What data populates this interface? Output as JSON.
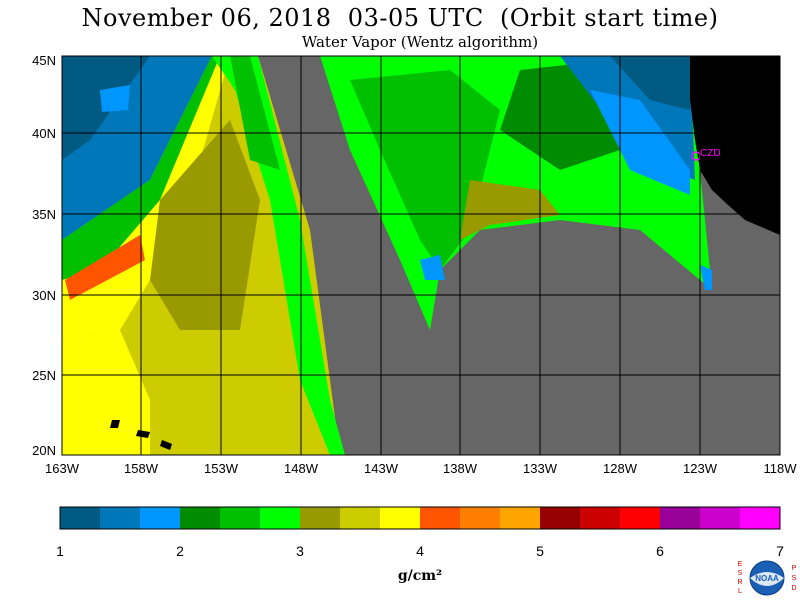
{
  "header": {
    "title": "November 06, 2018  03-05 UTC  (Orbit start time)",
    "subtitle": "Water Vapor (Wentz algorithm)"
  },
  "map": {
    "lat_labels": [
      "45N",
      "40N",
      "35N",
      "30N",
      "25N",
      "20N"
    ],
    "lon_labels": [
      "163W",
      "158W",
      "153W",
      "148W",
      "143W",
      "138W",
      "133W",
      "128W",
      "123W",
      "118W"
    ],
    "lat_range": [
      20,
      45
    ],
    "lon_range": [
      -163,
      -118
    ],
    "station_label": "CZD",
    "colors": {
      "no_data": "#666666",
      "land": "#000000",
      "grid": "#000000",
      "station": "#ff00ff"
    }
  },
  "colorbar": {
    "tick_labels": [
      "1",
      "2",
      "3",
      "4",
      "5",
      "6",
      "7"
    ],
    "unit_label": "g/cm²",
    "value_range": [
      1,
      7
    ],
    "colors": [
      "#005a82",
      "#0077b8",
      "#0096ff",
      "#008c00",
      "#00c000",
      "#00ff00",
      "#999900",
      "#cccc00",
      "#ffff00",
      "#ff5500",
      "#ff8000",
      "#ffa500",
      "#960000",
      "#cc0000",
      "#ff0000",
      "#990099",
      "#cc00cc",
      "#ff00ff"
    ]
  },
  "logo": {
    "left_letters": [
      "E",
      "S",
      "R",
      "L"
    ],
    "right_letters": [
      "P",
      "S",
      "D"
    ],
    "badge": "NOAA"
  }
}
